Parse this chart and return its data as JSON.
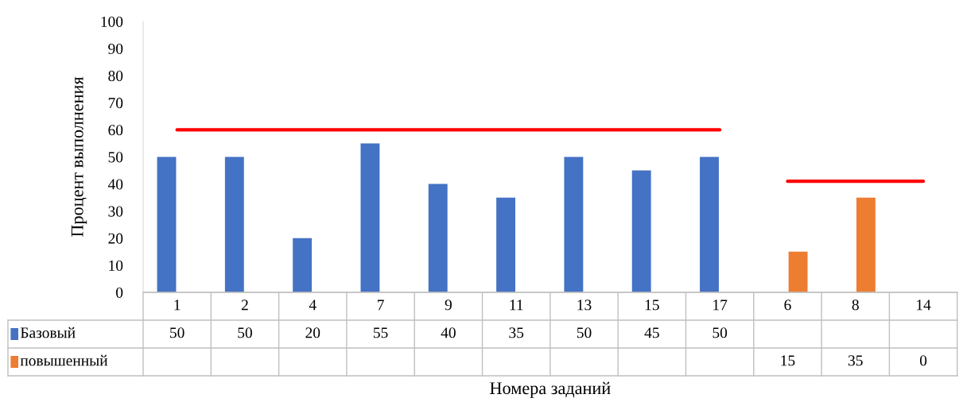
{
  "chart_data": {
    "type": "bar",
    "xlabel": "Номера заданий",
    "ylabel": "Процент выполнения",
    "categories": [
      "1",
      "2",
      "4",
      "7",
      "9",
      "11",
      "13",
      "15",
      "17",
      "6",
      "8",
      "14"
    ],
    "series": [
      {
        "name": "Базовый",
        "color": "#4472c4",
        "values": [
          50,
          50,
          20,
          55,
          40,
          35,
          50,
          45,
          50,
          null,
          null,
          null
        ],
        "value_labels": [
          "50",
          "50",
          "20",
          "55",
          "40",
          "35",
          "50",
          "45",
          "50",
          null,
          null,
          null
        ]
      },
      {
        "name": "повышенный",
        "color": "#ed7d31",
        "values": [
          null,
          null,
          null,
          null,
          null,
          null,
          null,
          null,
          null,
          15,
          35,
          0
        ],
        "value_labels": [
          null,
          null,
          null,
          null,
          null,
          null,
          null,
          null,
          null,
          "15",
          "35",
          "0"
        ]
      },
      {
        "type": "line",
        "color": "#ff0000",
        "values": [
          60,
          60,
          60,
          60,
          60,
          60,
          60,
          60,
          60,
          null,
          null,
          null
        ]
      },
      {
        "type": "line",
        "color": "#ff0000",
        "values": [
          null,
          null,
          null,
          null,
          null,
          null,
          null,
          null,
          null,
          41,
          41,
          41
        ]
      }
    ],
    "ylim": [
      0,
      100
    ],
    "yticks": [
      0,
      10,
      20,
      30,
      40,
      50,
      60,
      70,
      80,
      90,
      100
    ],
    "legend": "bottom",
    "grid": false
  }
}
